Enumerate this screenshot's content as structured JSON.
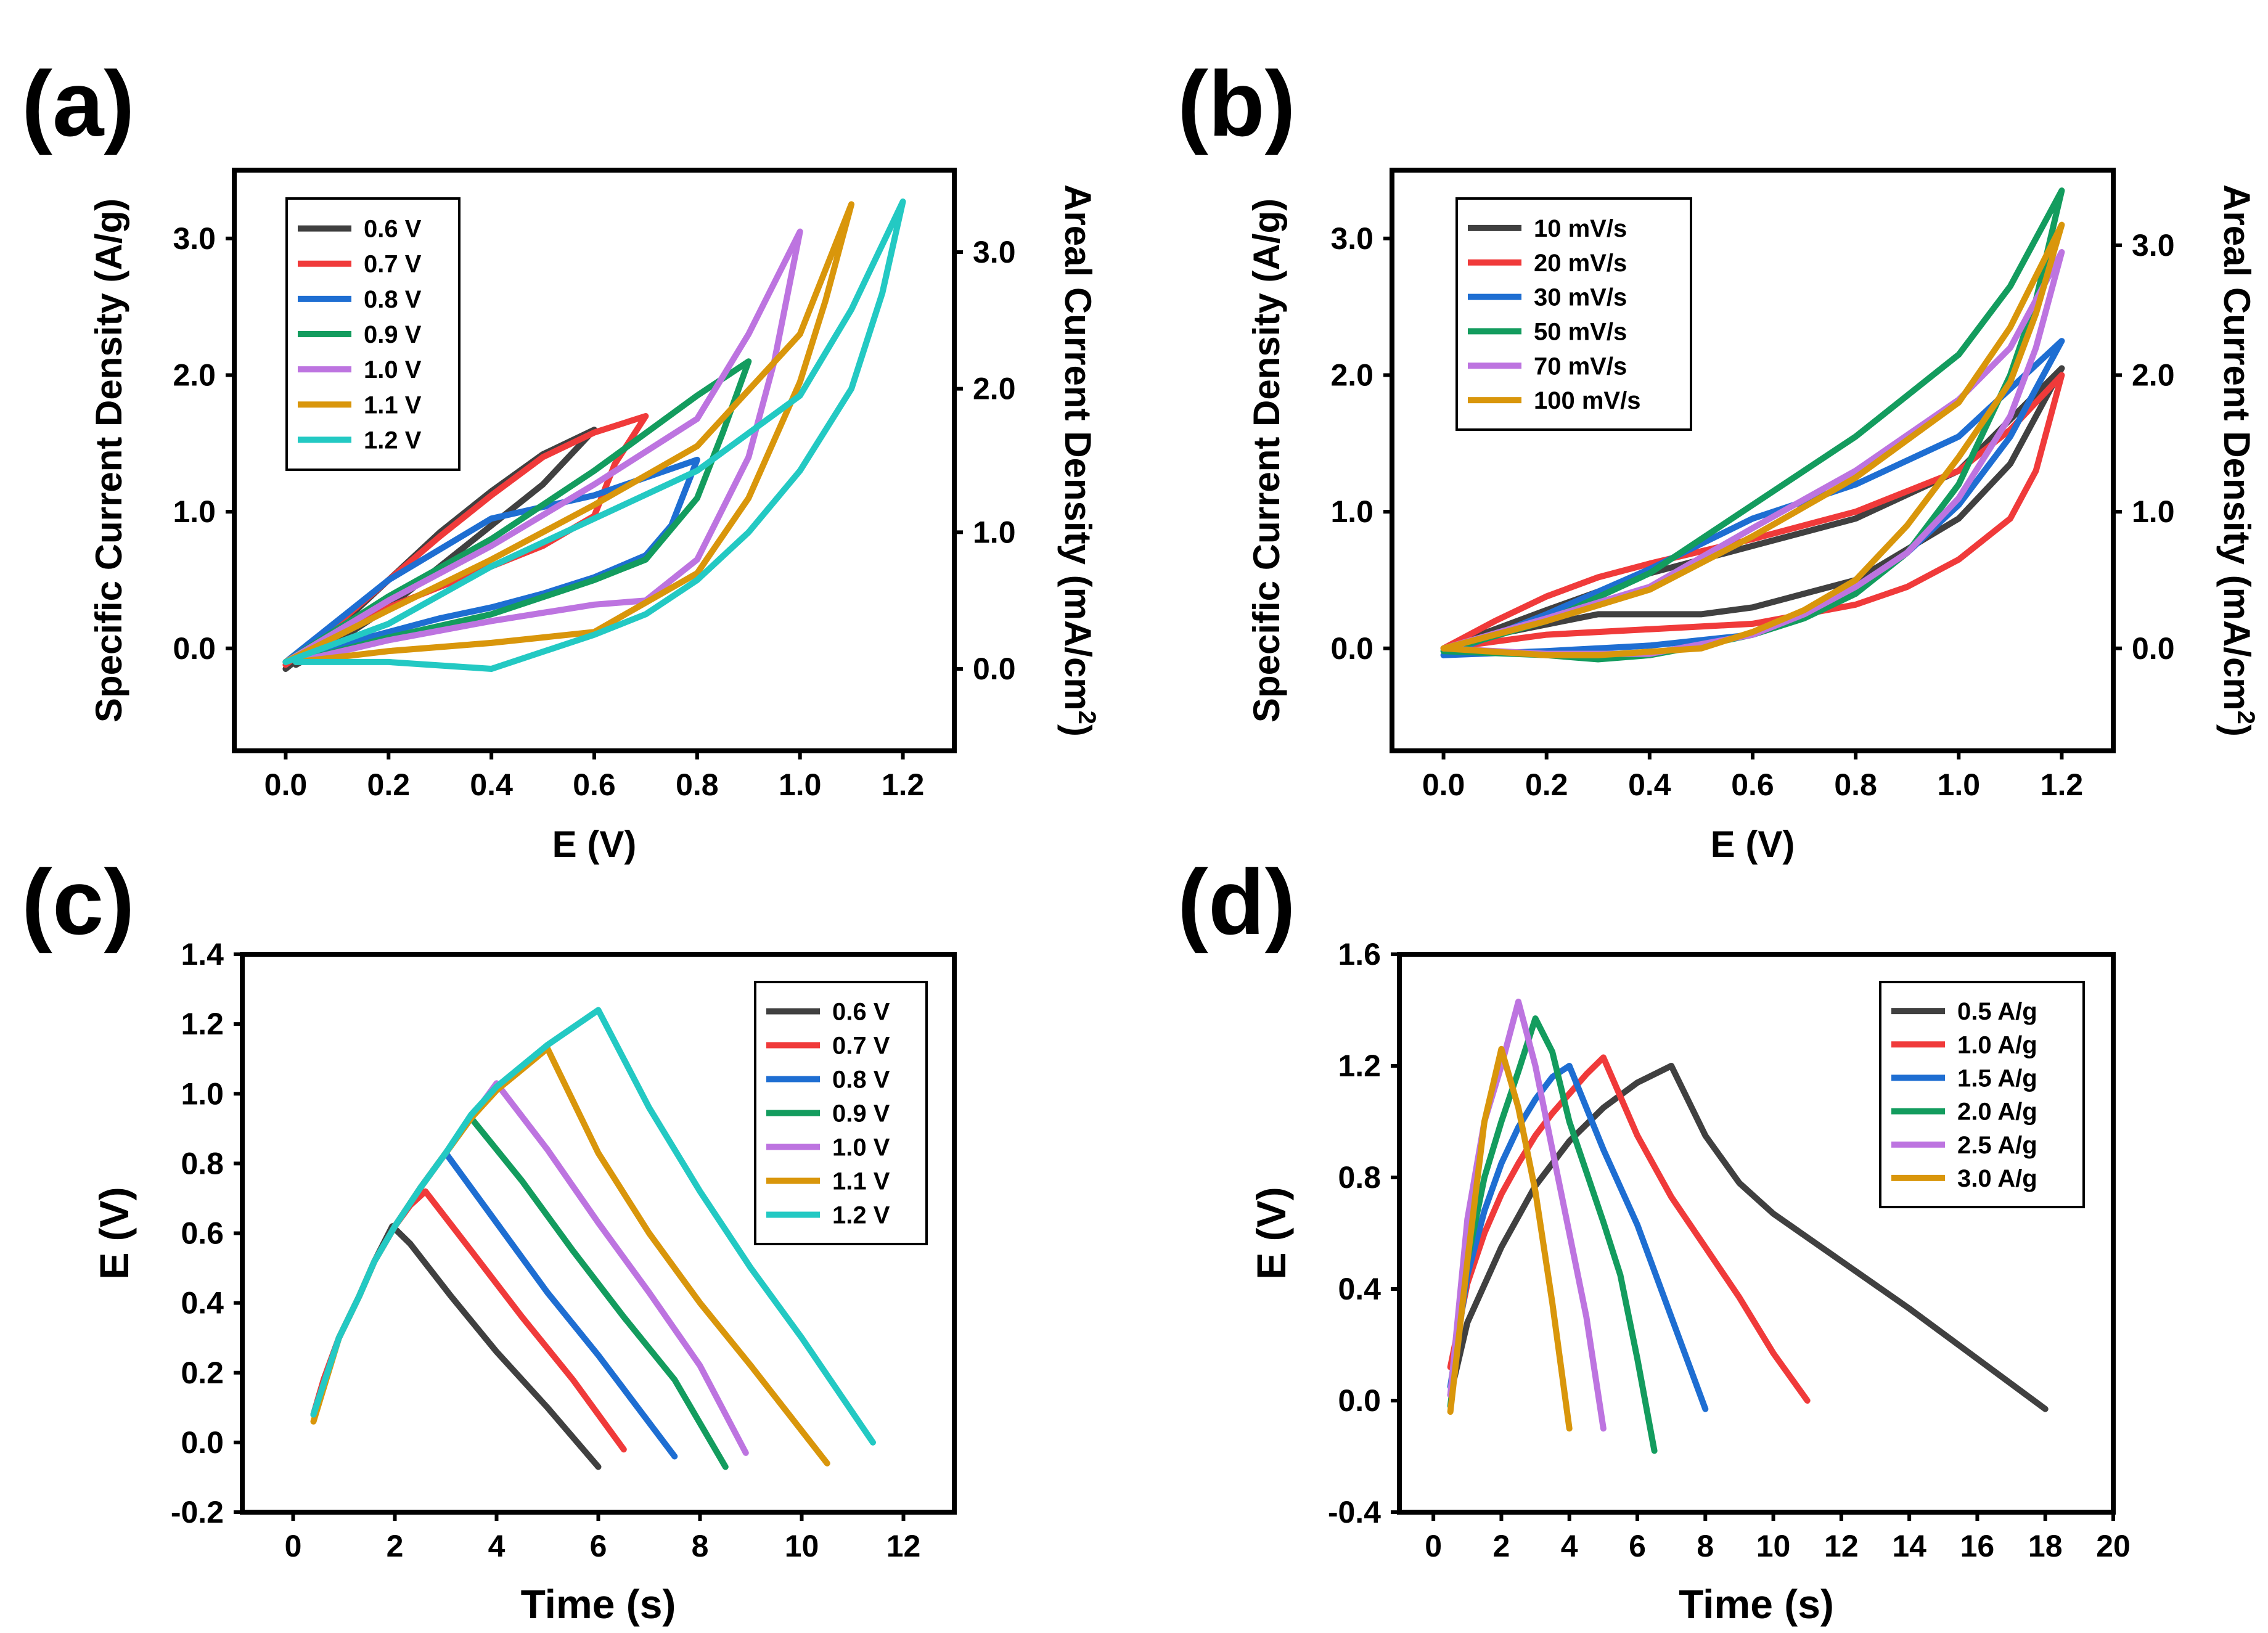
{
  "chart_data": [
    {
      "type": "line",
      "panel_label": "(a)",
      "xlabel": "E (V)",
      "ylabel": "Specific Current Density (A/g)",
      "y2label": "Areal Current Density (mA/cm",
      "y2label_sup": "2",
      "y2label_tail": ")",
      "xlim": [
        -0.1,
        1.3
      ],
      "ylim": [
        -0.75,
        3.5
      ],
      "xticks": [
        "0.0",
        "0.2",
        "0.4",
        "0.6",
        "0.8",
        "1.0",
        "1.2"
      ],
      "yticks": [
        "0.0",
        "1.0",
        "2.0",
        "3.0"
      ],
      "y2ticks": [
        "0.0",
        "1.0",
        "2.0",
        "3.0"
      ],
      "y2_values": [
        0.0,
        1.0,
        2.0,
        3.0
      ],
      "y2_positions": [
        -0.15,
        0.85,
        1.9,
        2.9
      ],
      "legend_position": "top-left",
      "series": [
        {
          "name": "0.6 V",
          "color": "#404040",
          "x": [
            0,
            0.1,
            0.2,
            0.3,
            0.4,
            0.5,
            0.6,
            0.5,
            0.4,
            0.3,
            0.2,
            0.1,
            0.02
          ],
          "y": [
            -0.15,
            0.15,
            0.5,
            0.85,
            1.15,
            1.42,
            1.6,
            1.2,
            0.9,
            0.6,
            0.3,
            0.05,
            -0.12
          ]
        },
        {
          "name": "0.7 V",
          "color": "#f03a3a",
          "x": [
            0,
            0.1,
            0.2,
            0.3,
            0.4,
            0.5,
            0.6,
            0.7,
            0.64,
            0.6,
            0.5,
            0.4,
            0.3,
            0.2,
            0.1,
            0.02
          ],
          "y": [
            -0.12,
            0.18,
            0.5,
            0.82,
            1.12,
            1.4,
            1.58,
            1.7,
            1.35,
            0.97,
            0.75,
            0.6,
            0.45,
            0.3,
            0.1,
            -0.1
          ]
        },
        {
          "name": "0.8 V",
          "color": "#1e6ed2",
          "x": [
            0,
            0.2,
            0.4,
            0.6,
            0.7,
            0.8,
            0.75,
            0.7,
            0.6,
            0.5,
            0.4,
            0.3,
            0.2,
            0.1,
            0.02
          ],
          "y": [
            -0.1,
            0.5,
            0.95,
            1.12,
            1.25,
            1.38,
            0.9,
            0.68,
            0.52,
            0.4,
            0.3,
            0.22,
            0.12,
            0.02,
            -0.1
          ]
        },
        {
          "name": "0.9 V",
          "color": "#139c5e",
          "x": [
            0,
            0.2,
            0.4,
            0.6,
            0.8,
            0.9,
            0.85,
            0.8,
            0.7,
            0.6,
            0.4,
            0.2,
            0.02
          ],
          "y": [
            -0.1,
            0.38,
            0.8,
            1.3,
            1.85,
            2.1,
            1.58,
            1.1,
            0.65,
            0.5,
            0.25,
            0.08,
            -0.1
          ]
        },
        {
          "name": "1.0 V",
          "color": "#bd74e0",
          "x": [
            0,
            0.2,
            0.4,
            0.6,
            0.8,
            0.9,
            1.0,
            0.95,
            0.9,
            0.8,
            0.7,
            0.6,
            0.4,
            0.2,
            0.02
          ],
          "y": [
            -0.1,
            0.35,
            0.75,
            1.2,
            1.68,
            2.3,
            3.05,
            2.1,
            1.4,
            0.65,
            0.35,
            0.32,
            0.2,
            0.06,
            -0.1
          ]
        },
        {
          "name": "1.1 V",
          "color": "#d9960b",
          "x": [
            0,
            0.2,
            0.4,
            0.6,
            0.8,
            1.0,
            1.1,
            1.05,
            1.0,
            0.9,
            0.8,
            0.6,
            0.4,
            0.2,
            0.02
          ],
          "y": [
            -0.1,
            0.28,
            0.65,
            1.05,
            1.48,
            2.3,
            3.25,
            2.55,
            1.95,
            1.1,
            0.55,
            0.12,
            0.04,
            -0.02,
            -0.1
          ]
        },
        {
          "name": "1.2 V",
          "color": "#23c9c3",
          "x": [
            0,
            0.2,
            0.4,
            0.6,
            0.8,
            1.0,
            1.1,
            1.2,
            1.16,
            1.1,
            1.0,
            0.9,
            0.8,
            0.7,
            0.6,
            0.4,
            0.2,
            0.02
          ],
          "y": [
            -0.1,
            0.18,
            0.6,
            0.95,
            1.3,
            1.85,
            2.48,
            3.27,
            2.6,
            1.9,
            1.3,
            0.85,
            0.5,
            0.25,
            0.1,
            -0.15,
            -0.1,
            -0.1
          ]
        }
      ]
    },
    {
      "type": "line",
      "panel_label": "(b)",
      "xlabel": "E (V)",
      "ylabel": "Specific Current Density (A/g)",
      "y2label": "Areal Current Density (mA/cm",
      "y2label_sup": "2",
      "y2label_tail": ")",
      "xlim": [
        -0.1,
        1.3
      ],
      "ylim": [
        -0.75,
        3.5
      ],
      "xticks": [
        "0.0",
        "0.2",
        "0.4",
        "0.6",
        "0.8",
        "1.0",
        "1.2"
      ],
      "yticks": [
        "0.0",
        "1.0",
        "2.0",
        "3.0"
      ],
      "y2ticks": [
        "0.0",
        "1.0",
        "2.0",
        "3.0"
      ],
      "y2_values": [
        0.0,
        1.0,
        2.0,
        3.0
      ],
      "y2_positions": [
        0.0,
        1.0,
        2.0,
        2.95
      ],
      "legend_position": "top-left",
      "series": [
        {
          "name": "10 mV/s",
          "color": "#404040",
          "x": [
            0,
            0.2,
            0.4,
            0.6,
            0.8,
            1.0,
            1.2,
            1.1,
            1.0,
            0.8,
            0.6,
            0.5,
            0.3,
            0.1,
            0
          ],
          "y": [
            0,
            0.28,
            0.55,
            0.75,
            0.95,
            1.3,
            2.05,
            1.35,
            0.95,
            0.5,
            0.3,
            0.25,
            0.25,
            0.1,
            0
          ]
        },
        {
          "name": "20 mV/s",
          "color": "#f03a3a",
          "x": [
            0,
            0.1,
            0.2,
            0.3,
            0.4,
            0.6,
            0.8,
            1.0,
            1.1,
            1.2,
            1.15,
            1.1,
            1.0,
            0.9,
            0.8,
            0.6,
            0.4,
            0.2,
            0.1,
            0
          ],
          "y": [
            0,
            0.2,
            0.38,
            0.52,
            0.62,
            0.8,
            1.0,
            1.3,
            1.6,
            2.0,
            1.3,
            0.95,
            0.65,
            0.45,
            0.32,
            0.18,
            0.14,
            0.1,
            0.05,
            0
          ]
        },
        {
          "name": "30 mV/s",
          "color": "#1e6ed2",
          "x": [
            0,
            0.2,
            0.4,
            0.6,
            0.8,
            1.0,
            1.1,
            1.2,
            1.1,
            1.0,
            0.9,
            0.8,
            0.7,
            0.6,
            0.4,
            0.2,
            0
          ],
          "y": [
            -0.05,
            0.25,
            0.58,
            0.95,
            1.2,
            1.55,
            1.9,
            2.25,
            1.55,
            1.05,
            0.7,
            0.45,
            0.25,
            0.1,
            0.02,
            -0.02,
            -0.05
          ]
        },
        {
          "name": "50 mV/s",
          "color": "#139c5e",
          "x": [
            0,
            0.2,
            0.4,
            0.6,
            0.8,
            1.0,
            1.1,
            1.2,
            1.15,
            1.1,
            1.0,
            0.9,
            0.8,
            0.7,
            0.6,
            0.5,
            0.4,
            0.3,
            0.2,
            0
          ],
          "y": [
            -0.02,
            0.2,
            0.55,
            1.05,
            1.55,
            2.15,
            2.65,
            3.35,
            2.55,
            2.0,
            1.2,
            0.7,
            0.4,
            0.22,
            0.1,
            0.02,
            -0.05,
            -0.08,
            -0.05,
            -0.02
          ]
        },
        {
          "name": "70 mV/s",
          "color": "#bd74e0",
          "x": [
            0,
            0.2,
            0.4,
            0.6,
            0.8,
            1.0,
            1.1,
            1.2,
            1.15,
            1.1,
            1.0,
            0.9,
            0.8,
            0.7,
            0.6,
            0.4,
            0.2,
            0
          ],
          "y": [
            0,
            0.22,
            0.45,
            0.88,
            1.3,
            1.82,
            2.2,
            2.9,
            2.2,
            1.7,
            1.1,
            0.7,
            0.45,
            0.25,
            0.1,
            -0.04,
            -0.04,
            0
          ]
        },
        {
          "name": "100 mV/s",
          "color": "#d9960b",
          "x": [
            0,
            0.2,
            0.4,
            0.6,
            0.8,
            1.0,
            1.1,
            1.2,
            1.15,
            1.1,
            1.0,
            0.9,
            0.8,
            0.7,
            0.6,
            0.5,
            0.3,
            0.2,
            0
          ],
          "y": [
            0,
            0.2,
            0.43,
            0.82,
            1.25,
            1.8,
            2.35,
            3.1,
            2.45,
            1.95,
            1.4,
            0.9,
            0.5,
            0.28,
            0.12,
            0.0,
            -0.05,
            -0.05,
            0
          ]
        }
      ]
    },
    {
      "type": "line",
      "panel_label": "(c)",
      "xlabel": "Time (s)",
      "ylabel": "E (V)",
      "xlim": [
        -1,
        13
      ],
      "ylim": [
        -0.2,
        1.4
      ],
      "xticks": [
        "0",
        "2",
        "4",
        "6",
        "8",
        "10",
        "12"
      ],
      "yticks": [
        "-0.2",
        "0.0",
        "0.2",
        "0.4",
        "0.6",
        "0.8",
        "1.0",
        "1.2",
        "1.4"
      ],
      "legend_position": "top-right",
      "series": [
        {
          "name": "0.6 V",
          "color": "#404040",
          "x": [
            0.4,
            0.6,
            0.9,
            1.3,
            1.6,
            1.95,
            2.3,
            3.1,
            4.0,
            5.0,
            6.0
          ],
          "y": [
            0.08,
            0.18,
            0.3,
            0.42,
            0.52,
            0.62,
            0.57,
            0.42,
            0.26,
            0.1,
            -0.07
          ]
        },
        {
          "name": "0.7 V",
          "color": "#f03a3a",
          "x": [
            0.4,
            0.6,
            0.9,
            1.3,
            1.6,
            2.0,
            2.3,
            2.6,
            3.5,
            4.5,
            5.5,
            6.5
          ],
          "y": [
            0.08,
            0.18,
            0.3,
            0.42,
            0.52,
            0.62,
            0.68,
            0.72,
            0.55,
            0.36,
            0.18,
            -0.02
          ]
        },
        {
          "name": "0.8 V",
          "color": "#1e6ed2",
          "x": [
            0.4,
            0.9,
            1.3,
            1.6,
            2.0,
            2.5,
            3.0,
            4.0,
            5.0,
            6.0,
            7.5
          ],
          "y": [
            0.08,
            0.3,
            0.42,
            0.52,
            0.62,
            0.73,
            0.83,
            0.63,
            0.43,
            0.25,
            -0.04
          ]
        },
        {
          "name": "0.9 V",
          "color": "#139c5e",
          "x": [
            0.4,
            0.9,
            1.3,
            1.6,
            2.0,
            2.5,
            3.0,
            3.5,
            4.5,
            5.5,
            6.5,
            7.5,
            8.5
          ],
          "y": [
            0.08,
            0.3,
            0.42,
            0.52,
            0.62,
            0.73,
            0.83,
            0.93,
            0.75,
            0.55,
            0.36,
            0.18,
            -0.07
          ]
        },
        {
          "name": "1.0 V",
          "color": "#bd74e0",
          "x": [
            0.4,
            0.9,
            1.3,
            1.6,
            2.0,
            2.5,
            3.0,
            3.5,
            4.0,
            5.0,
            6.0,
            7.0,
            8.0,
            8.9
          ],
          "y": [
            0.08,
            0.3,
            0.42,
            0.52,
            0.62,
            0.73,
            0.83,
            0.93,
            1.03,
            0.84,
            0.63,
            0.43,
            0.22,
            -0.03
          ]
        },
        {
          "name": "1.1 V",
          "color": "#d9960b",
          "x": [
            0.4,
            0.9,
            1.3,
            1.6,
            2.0,
            2.5,
            3.0,
            3.5,
            4.0,
            4.5,
            5.0,
            6.0,
            7.0,
            8.0,
            9.0,
            10.5
          ],
          "y": [
            0.06,
            0.3,
            0.42,
            0.52,
            0.62,
            0.73,
            0.83,
            0.93,
            1.01,
            1.07,
            1.13,
            0.83,
            0.6,
            0.4,
            0.22,
            -0.06
          ]
        },
        {
          "name": "1.2 V",
          "color": "#23c9c3",
          "x": [
            0.4,
            0.9,
            1.3,
            1.6,
            2.0,
            2.5,
            3.0,
            3.5,
            4.0,
            5.0,
            6.0,
            7.0,
            8.0,
            9.0,
            10.0,
            11.4
          ],
          "y": [
            0.08,
            0.3,
            0.42,
            0.52,
            0.62,
            0.73,
            0.83,
            0.94,
            1.02,
            1.14,
            1.24,
            0.96,
            0.72,
            0.5,
            0.3,
            0.0
          ]
        }
      ]
    },
    {
      "type": "line",
      "panel_label": "(d)",
      "xlabel": "Time (s)",
      "ylabel": "E (V)",
      "xlim": [
        -1,
        20
      ],
      "ylim": [
        -0.4,
        1.6
      ],
      "xticks": [
        "0",
        "2",
        "4",
        "6",
        "8",
        "10",
        "12",
        "14",
        "16",
        "18",
        "20"
      ],
      "yticks": [
        "-0.4",
        "0.0",
        "0.4",
        "0.8",
        "1.2",
        "1.6"
      ],
      "legend_position": "top-right",
      "series": [
        {
          "name": "0.5 A/g",
          "color": "#404040",
          "x": [
            0.5,
            1,
            2,
            3,
            4,
            5,
            6,
            7,
            8,
            9,
            10,
            12,
            14,
            16,
            18
          ],
          "y": [
            0.02,
            0.28,
            0.55,
            0.77,
            0.93,
            1.05,
            1.14,
            1.2,
            0.95,
            0.78,
            0.67,
            0.5,
            0.33,
            0.15,
            -0.03
          ]
        },
        {
          "name": "1.0 A/g",
          "color": "#f03a3a",
          "x": [
            0.5,
            1,
            1.5,
            2,
            2.5,
            3,
            3.5,
            4,
            4.5,
            5,
            6,
            7,
            8,
            9,
            10,
            11
          ],
          "y": [
            0.12,
            0.42,
            0.6,
            0.74,
            0.85,
            0.95,
            1.03,
            1.1,
            1.17,
            1.23,
            0.95,
            0.73,
            0.55,
            0.37,
            0.17,
            0.0
          ]
        },
        {
          "name": "1.5 A/g",
          "color": "#1e6ed2",
          "x": [
            0.5,
            1,
            1.5,
            2,
            2.5,
            3,
            3.5,
            4,
            5,
            6,
            7,
            8
          ],
          "y": [
            0.05,
            0.45,
            0.68,
            0.85,
            0.98,
            1.08,
            1.16,
            1.2,
            0.9,
            0.63,
            0.3,
            -0.03
          ]
        },
        {
          "name": "2.0 A/g",
          "color": "#139c5e",
          "x": [
            0.5,
            1,
            1.5,
            2,
            2.5,
            3,
            3.5,
            4,
            5,
            5.5,
            6,
            6.5
          ],
          "y": [
            -0.02,
            0.5,
            0.8,
            1.0,
            1.18,
            1.37,
            1.25,
            1.0,
            0.64,
            0.45,
            0.15,
            -0.18
          ]
        },
        {
          "name": "2.5 A/g",
          "color": "#bd74e0",
          "x": [
            0.5,
            1,
            1.5,
            2,
            2.5,
            3,
            3.5,
            4,
            4.5,
            5
          ],
          "y": [
            0.02,
            0.65,
            1.0,
            1.2,
            1.43,
            1.2,
            0.9,
            0.6,
            0.3,
            -0.1
          ]
        },
        {
          "name": "3.0 A/g",
          "color": "#d9960b",
          "x": [
            0.5,
            1,
            1.5,
            2,
            2.5,
            3,
            3.5,
            4
          ],
          "y": [
            -0.04,
            0.5,
            1.0,
            1.26,
            1.05,
            0.75,
            0.35,
            -0.1
          ]
        }
      ]
    }
  ]
}
